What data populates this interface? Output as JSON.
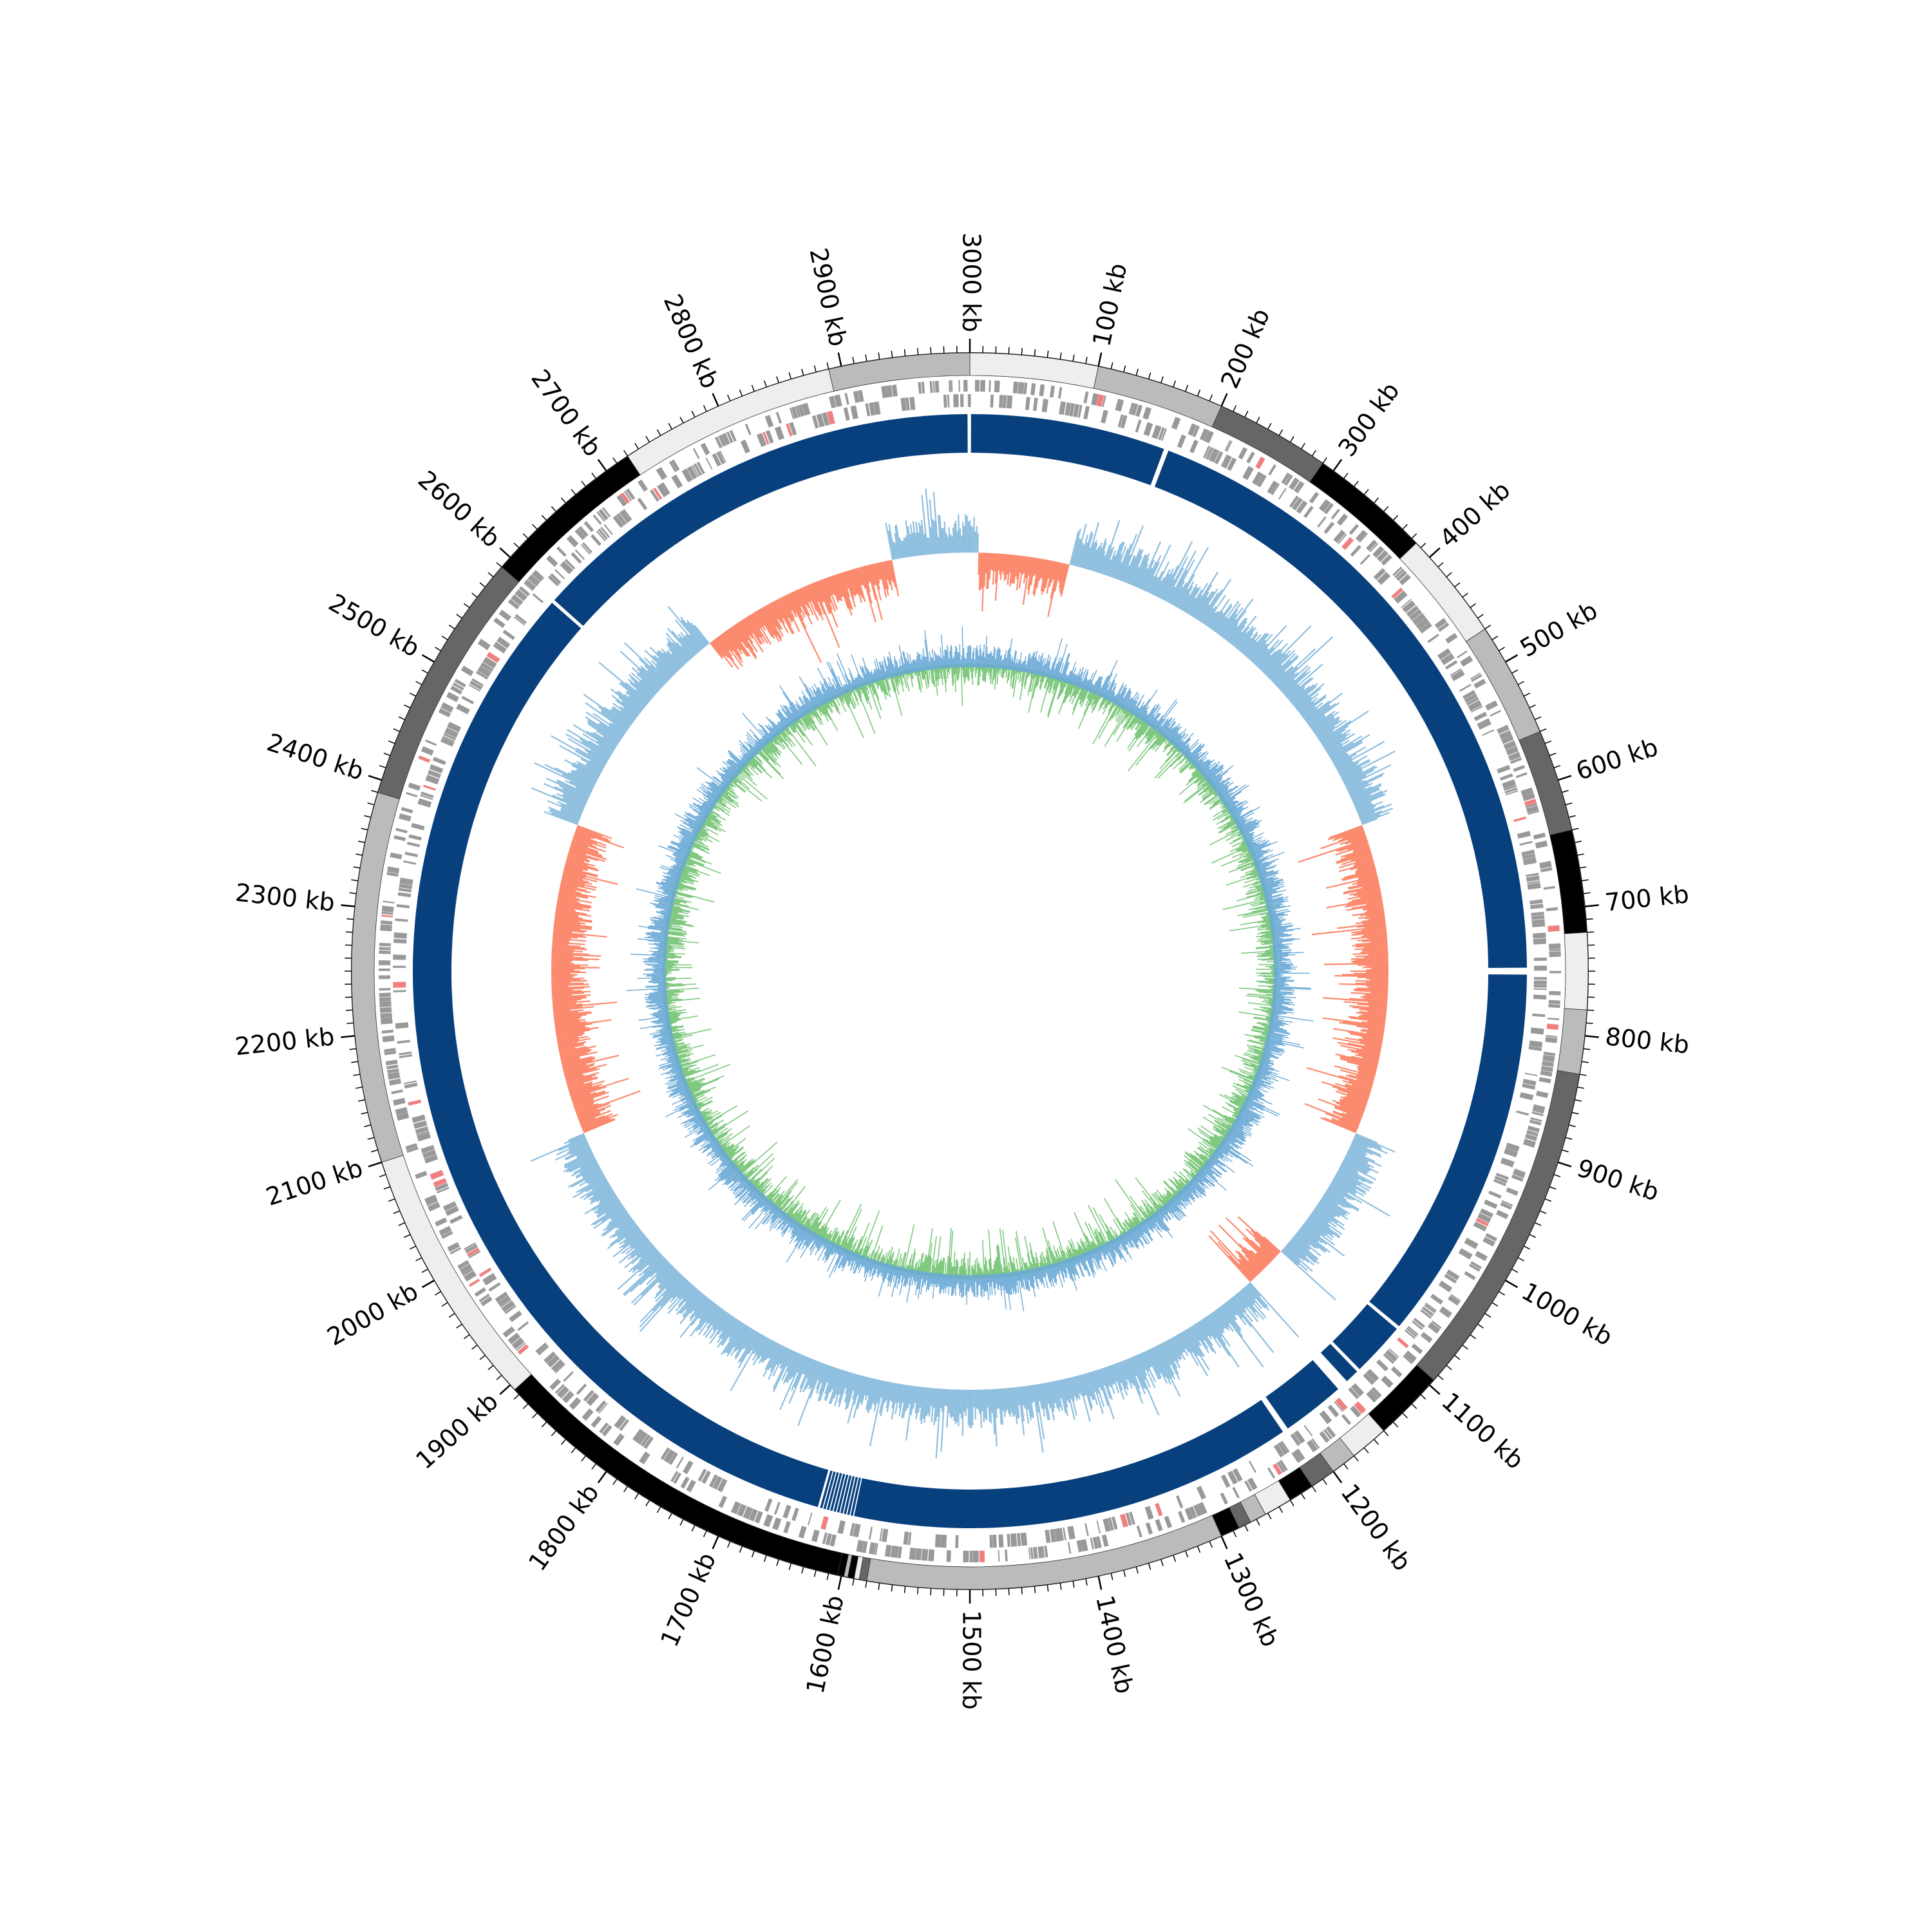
{
  "chart_data": {
    "type": "circular-genome-map",
    "genome_length_kb": 3000,
    "tick_labels": [
      {
        "kb": 100,
        "text": "100 kb"
      },
      {
        "kb": 200,
        "text": "200 kb"
      },
      {
        "kb": 300,
        "text": "300 kb"
      },
      {
        "kb": 400,
        "text": "400 kb"
      },
      {
        "kb": 500,
        "text": "500 kb"
      },
      {
        "kb": 600,
        "text": "600 kb"
      },
      {
        "kb": 700,
        "text": "700 kb"
      },
      {
        "kb": 800,
        "text": "800 kb"
      },
      {
        "kb": 900,
        "text": "900 kb"
      },
      {
        "kb": 1000,
        "text": "1000 kb"
      },
      {
        "kb": 1100,
        "text": "1100 kb"
      },
      {
        "kb": 1200,
        "text": "1200 kb"
      },
      {
        "kb": 1300,
        "text": "1300 kb"
      },
      {
        "kb": 1400,
        "text": "1400 kb"
      },
      {
        "kb": 1500,
        "text": "1500 kb"
      },
      {
        "kb": 1600,
        "text": "1600 kb"
      },
      {
        "kb": 1700,
        "text": "1700 kb"
      },
      {
        "kb": 1800,
        "text": "1800 kb"
      },
      {
        "kb": 1900,
        "text": "1900 kb"
      },
      {
        "kb": 2000,
        "text": "2000 kb"
      },
      {
        "kb": 2100,
        "text": "2100 kb"
      },
      {
        "kb": 2200,
        "text": "2200 kb"
      },
      {
        "kb": 2300,
        "text": "2300 kb"
      },
      {
        "kb": 2400,
        "text": "2400 kb"
      },
      {
        "kb": 2500,
        "text": "2500 kb"
      },
      {
        "kb": 2600,
        "text": "2600 kb"
      },
      {
        "kb": 2700,
        "text": "2700 kb"
      },
      {
        "kb": 2800,
        "text": "2800 kb"
      },
      {
        "kb": 2900,
        "text": "2900 kb"
      },
      {
        "kb": 3000,
        "text": "3000 kb"
      }
    ],
    "contig_ring": [
      {
        "start": 0,
        "end": 100,
        "color": "#eeeeee"
      },
      {
        "start": 100,
        "end": 200,
        "color": "#bbbbbb"
      },
      {
        "start": 200,
        "end": 290,
        "color": "#666666"
      },
      {
        "start": 290,
        "end": 385,
        "color": "#000000"
      },
      {
        "start": 385,
        "end": 470,
        "color": "#eeeeee"
      },
      {
        "start": 470,
        "end": 560,
        "color": "#bbbbbb"
      },
      {
        "start": 560,
        "end": 640,
        "color": "#666666"
      },
      {
        "start": 640,
        "end": 720,
        "color": "#000000"
      },
      {
        "start": 720,
        "end": 780,
        "color": "#eeeeee"
      },
      {
        "start": 780,
        "end": 830,
        "color": "#bbbbbb"
      },
      {
        "start": 830,
        "end": 1095,
        "color": "#666666"
      },
      {
        "start": 1095,
        "end": 1150,
        "color": "#000000"
      },
      {
        "start": 1150,
        "end": 1180,
        "color": "#eeeeee"
      },
      {
        "start": 1180,
        "end": 1200,
        "color": "#bbbbbb"
      },
      {
        "start": 1200,
        "end": 1220,
        "color": "#666666"
      },
      {
        "start": 1220,
        "end": 1240,
        "color": "#000000"
      },
      {
        "start": 1240,
        "end": 1262,
        "color": "#eeeeee"
      },
      {
        "start": 1262,
        "end": 1275,
        "color": "#bbbbbb"
      },
      {
        "start": 1275,
        "end": 1285,
        "color": "#666666"
      },
      {
        "start": 1285,
        "end": 1300,
        "color": "#000000"
      },
      {
        "start": 1300,
        "end": 1580,
        "color": "#bbbbbb"
      },
      {
        "start": 1580,
        "end": 1586,
        "color": "#666666"
      },
      {
        "start": 1586,
        "end": 1590,
        "color": "#eeeeee"
      },
      {
        "start": 1590,
        "end": 1595,
        "color": "#000000"
      },
      {
        "start": 1595,
        "end": 1598,
        "color": "#bbbbbb"
      },
      {
        "start": 1598,
        "end": 1603,
        "color": "#000000"
      },
      {
        "start": 1603,
        "end": 1895,
        "color": "#000000"
      },
      {
        "start": 1895,
        "end": 2100,
        "color": "#eeeeee"
      },
      {
        "start": 2100,
        "end": 2390,
        "color": "#bbbbbb"
      },
      {
        "start": 2390,
        "end": 2590,
        "color": "#666666"
      },
      {
        "start": 2590,
        "end": 2720,
        "color": "#000000"
      },
      {
        "start": 2720,
        "end": 2890,
        "color": "#eeeeee"
      },
      {
        "start": 2890,
        "end": 3000,
        "color": "#bbbbbb"
      }
    ],
    "blocks_ring": [
      {
        "start": 1,
        "end": 170
      },
      {
        "start": 174,
        "end": 747
      },
      {
        "start": 753,
        "end": 1080
      },
      {
        "start": 1083,
        "end": 1130
      },
      {
        "start": 1133,
        "end": 1145
      },
      {
        "start": 1155,
        "end": 1210
      },
      {
        "start": 1215,
        "end": 1600
      },
      {
        "start": 1601,
        "end": 1603
      },
      {
        "start": 1604,
        "end": 1606
      },
      {
        "start": 1607,
        "end": 1609
      },
      {
        "start": 1610,
        "end": 1612
      },
      {
        "start": 1613,
        "end": 1615
      },
      {
        "start": 1616,
        "end": 1618
      },
      {
        "start": 1619,
        "end": 1621
      },
      {
        "start": 1622,
        "end": 1624
      },
      {
        "start": 1625,
        "end": 1627
      },
      {
        "start": 1628,
        "end": 1630
      },
      {
        "start": 1632,
        "end": 2595
      },
      {
        "start": 2598,
        "end": 2998
      }
    ],
    "gc_skew_ring": {
      "negative_regions": [
        {
          "start": 10,
          "end": 115
        },
        {
          "start": 580,
          "end": 940
        },
        {
          "start": 1100,
          "end": 1150
        },
        {
          "start": 2060,
          "end": 2420
        },
        {
          "start": 2680,
          "end": 2910
        }
      ]
    },
    "colors": {
      "contig_light": "#eeeeee",
      "contig_mid": "#bbbbbb",
      "contig_dark": "#666666",
      "contig_black": "#000000",
      "feature_gray": "#999999",
      "feature_red": "#f08080",
      "blocks": "#08407e",
      "skew_positive": "#8fbfdf",
      "skew_negative": "#fb8a6e",
      "gc_content": "#7ec87e",
      "gc_variation": "#6aa9d6"
    }
  }
}
